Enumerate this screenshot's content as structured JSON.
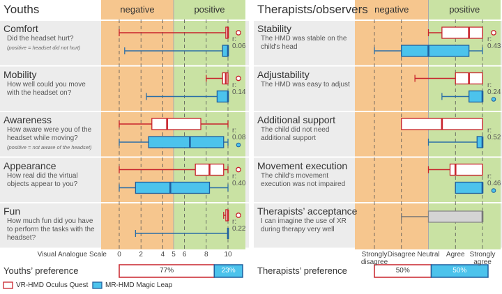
{
  "panels": [
    {
      "title": "Youths",
      "negative": "negative",
      "positive": "positive",
      "xlim": [
        0,
        10
      ],
      "divider": 5,
      "xticks": [
        0,
        2,
        4,
        5,
        6,
        8,
        10
      ],
      "axis_label": "Visual Analogue Scale",
      "rows": [
        {
          "title": "Comfort",
          "question": "Did the headset hurt?",
          "note": "(positive = headset did not hurt)",
          "r": "0.06",
          "marker": "vr",
          "vr": {
            "min": 0,
            "q1": 9.8,
            "median": 10,
            "q3": 10,
            "max": 10
          },
          "mr": {
            "min": 0.5,
            "q1": 9.5,
            "median": 10,
            "q3": 10,
            "max": 10
          }
        },
        {
          "title": "Mobility",
          "question": "How well could you move with the headset on?",
          "r": "0.14",
          "marker": "vr",
          "vr": {
            "min": 8,
            "q1": 9.5,
            "median": 9.8,
            "q3": 10,
            "max": 10
          },
          "mr": {
            "min": 2.5,
            "q1": 9,
            "median": 10,
            "q3": 10,
            "max": 10
          }
        },
        {
          "title": "Awareness",
          "question": "How aware were you of the headset while moving?",
          "note": "(positive = not aware of the headset)",
          "r": "0.08",
          "marker": "mr",
          "vr": {
            "min": 0,
            "q1": 3,
            "median": 4.4,
            "q3": 7.5,
            "max": 10
          },
          "mr": {
            "min": 0,
            "q1": 2.7,
            "median": 6.5,
            "q3": 9.6,
            "max": 10
          }
        },
        {
          "title": "Appearance",
          "question": "How real did the virtual objects appear to you?",
          "r": "0.40",
          "marker": "vr",
          "vr": {
            "min": 0,
            "q1": 7,
            "median": 8.3,
            "q3": 9.6,
            "max": 10
          },
          "mr": {
            "min": 0,
            "q1": 1.5,
            "median": 4.7,
            "q3": 8.3,
            "max": 10
          }
        },
        {
          "title": "Fun",
          "question": "How much fun did you have to perform the tasks with the headset?",
          "r": "0.22",
          "marker": "vr",
          "vr": {
            "min": 9.6,
            "q1": 9.8,
            "median": 10,
            "q3": 10,
            "max": 10
          },
          "mr": {
            "min": 1.5,
            "q1": 10,
            "median": 10,
            "q3": 10,
            "max": 10
          }
        }
      ],
      "preference": {
        "label": "Youths’ preference",
        "values": [
          77,
          23
        ],
        "value_labels": [
          "77%",
          "23%"
        ]
      }
    },
    {
      "title": "Therapists/observers",
      "negative": "negative",
      "positive": "positive",
      "xlim": [
        1,
        5
      ],
      "divider": 3,
      "xticks": [
        {
          "value": 1,
          "label": "Strongly disagree"
        },
        {
          "value": 2,
          "label": "Disagree"
        },
        {
          "value": 3,
          "label": "Neutral"
        },
        {
          "value": 4,
          "label": "Agree"
        },
        {
          "value": 5,
          "label": "Strongly agree"
        }
      ],
      "rows": [
        {
          "title": "Stability",
          "question": "The HMD was stable on the child's head",
          "r": "0.43",
          "marker": "vr",
          "vr": {
            "min": 3,
            "q1": 3.5,
            "median": 4.5,
            "q3": 5,
            "max": 5
          },
          "mr": {
            "min": 1,
            "q1": 2,
            "median": 3,
            "q3": 4.5,
            "max": 5
          }
        },
        {
          "title": "Adjustability",
          "question": "The HMD was easy to adjust",
          "r": "0.24",
          "marker": "mr",
          "vr": {
            "min": 2.5,
            "q1": 4,
            "median": 4.5,
            "q3": 5,
            "max": 5
          },
          "mr": {
            "min": 3.5,
            "q1": 4.5,
            "median": 5,
            "q3": 5,
            "max": 5
          }
        },
        {
          "title": "Additional support",
          "question": "The child did not need additional support",
          "r": "0.52",
          "vr": {
            "min": 2,
            "q1": 2,
            "median": 3.5,
            "q3": 5,
            "max": 5
          },
          "mr": {
            "min": 3,
            "q1": 4.8,
            "median": 5,
            "q3": 5,
            "max": 5
          }
        },
        {
          "title": "Movement execution",
          "question": "The child’s movement execution was not impaired",
          "r": "0.46",
          "marker": "mr",
          "vr": {
            "min": 3,
            "q1": 3.8,
            "median": 4,
            "q3": 5,
            "max": 5
          },
          "mr": {
            "min": 4,
            "q1": 4,
            "median": 5,
            "q3": 5,
            "max": 5
          }
        },
        {
          "title": "Therapists’ acceptance",
          "question": "I can  imagine the use of XR during therapy very well",
          "all": {
            "min": 2,
            "q1": 3,
            "median": 5,
            "q3": 5,
            "max": 5
          }
        }
      ],
      "preference": {
        "label": "Therapists’ preference",
        "values": [
          50,
          50
        ],
        "value_labels": [
          "50%",
          "50%"
        ]
      }
    }
  ],
  "r_label": "r:",
  "legend": [
    {
      "name": "VR-HMD Oculus Quest",
      "color": "#c8232c"
    },
    {
      "name": "MR-HMD Magic Leap",
      "color": "#4cc3ec"
    }
  ]
}
